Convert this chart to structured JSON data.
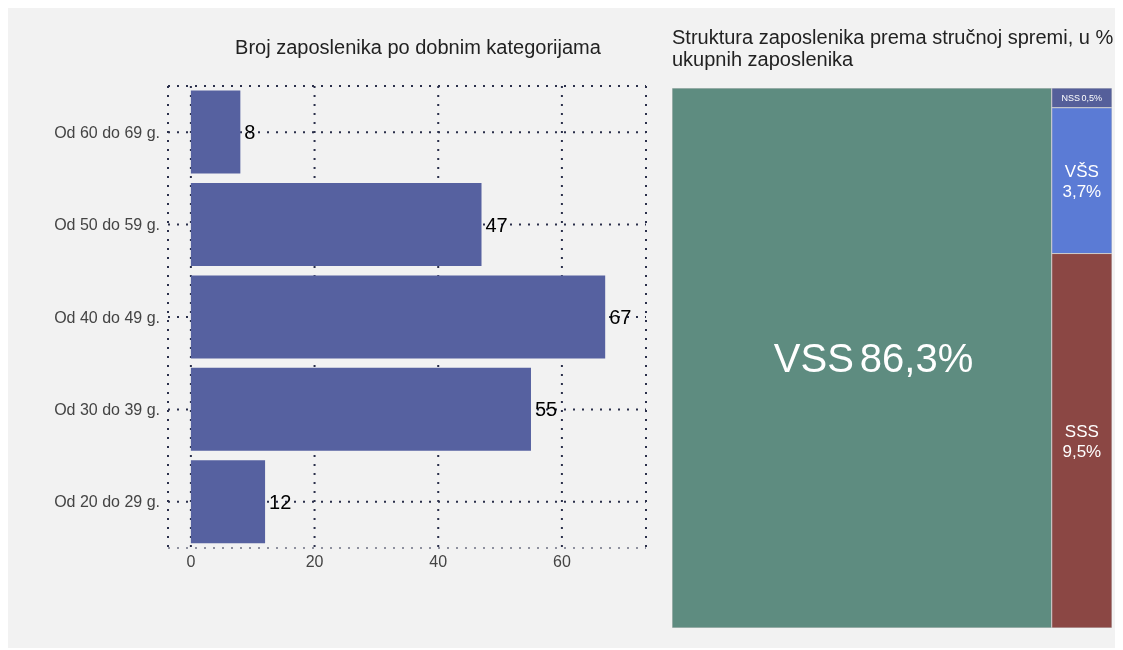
{
  "chart_data": [
    {
      "type": "bar",
      "orientation": "horizontal",
      "title": "Broj zaposlenika po dobnim kategorijama",
      "categories": [
        "Od 60 do 69 g.",
        "Od 50 do 59 g.",
        "Od 40 do 49 g.",
        "Od 30 do 39 g.",
        "Od 20 do 29 g."
      ],
      "values": [
        8,
        47,
        67,
        55,
        12
      ],
      "color": "#5661a0",
      "data_labels": true,
      "xlim": [
        -3.7,
        73.6
      ],
      "xticks": [
        0,
        20,
        40,
        60
      ],
      "grid": true
    },
    {
      "type": "other",
      "title": "Struktura zaposlenika prema stručnoj spremi, u % ukupnih zaposlenika",
      "categories": [
        "VSS",
        "NSS",
        "VŠS",
        "SSS"
      ],
      "values": [
        86.3,
        0.5,
        3.7,
        9.5
      ],
      "value_labels": [
        "86,3%",
        "0,5%",
        "3,7%",
        "9,5%"
      ],
      "colors": [
        "#5e8c80",
        "#555f9a",
        "#5b7bd5",
        "#8b4744"
      ]
    }
  ]
}
